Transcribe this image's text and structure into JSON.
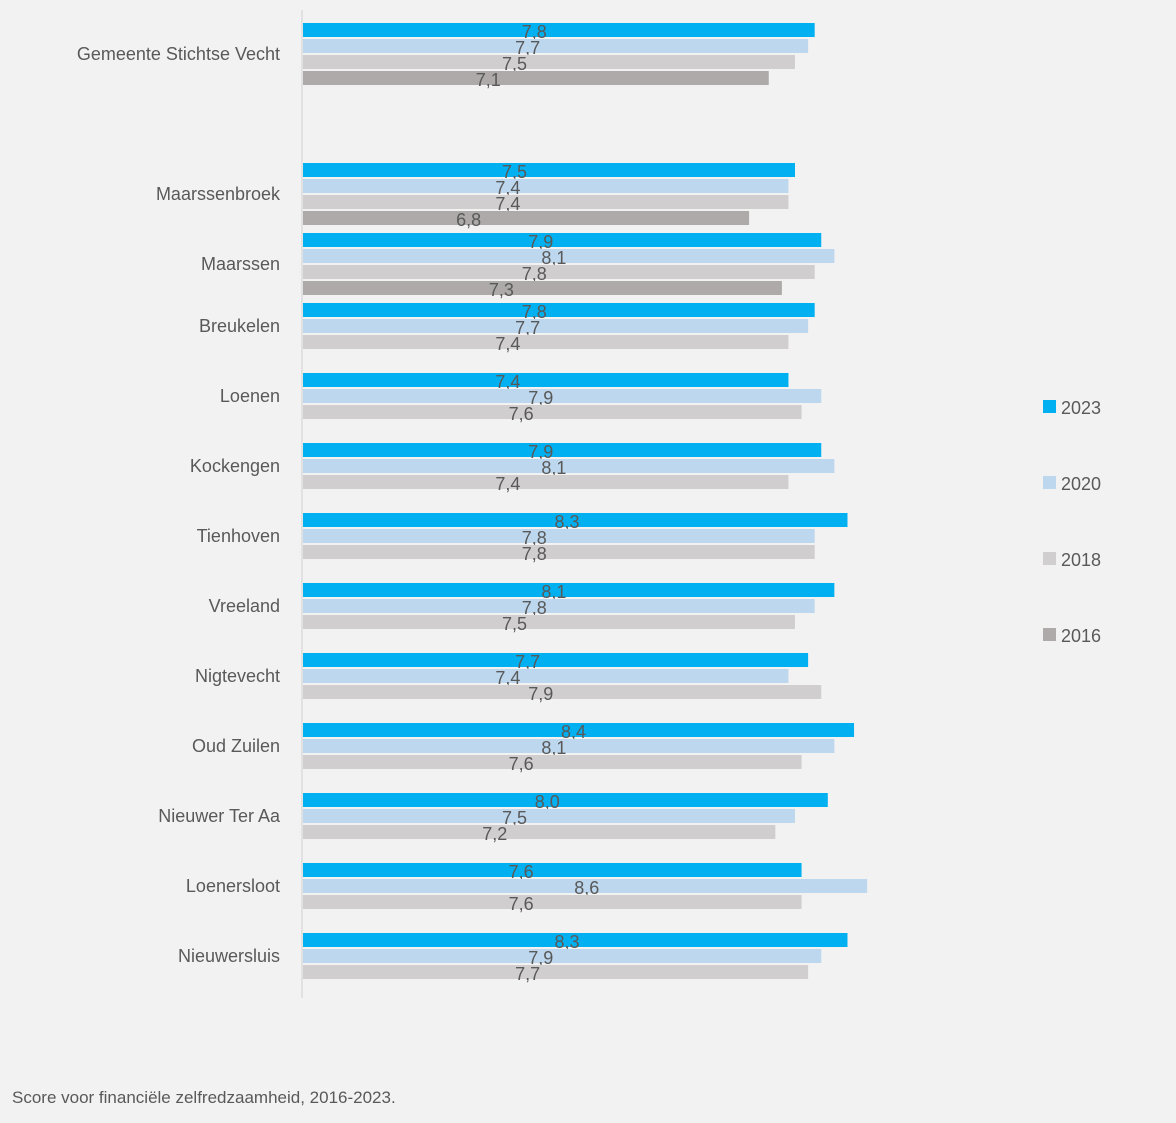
{
  "caption": "Score voor financiële zelfredzaamheid, 2016-2023.",
  "colors": {
    "background": "#f2f2f2",
    "axis": "#d0d0d0",
    "text": "#595959"
  },
  "chart_data": {
    "type": "bar",
    "orientation": "horizontal",
    "xlim": [
      0,
      8.6
    ],
    "grid": false,
    "legend_position": "right",
    "categories": [
      "Gemeente Stichtse Vecht",
      "",
      "Maarssenbroek",
      "Maarssen",
      "Breukelen",
      "Loenen",
      "Kockengen",
      "Tienhoven",
      "Vreeland",
      "Nigtevecht",
      "Oud Zuilen",
      "Nieuwer Ter Aa",
      "Loenersloot",
      "Nieuwersluis"
    ],
    "series": [
      {
        "name": "2023",
        "color": "#00b0f0",
        "values": [
          7.8,
          null,
          7.5,
          7.9,
          7.8,
          7.4,
          7.9,
          8.3,
          8.1,
          7.7,
          8.4,
          8.0,
          7.6,
          8.3
        ]
      },
      {
        "name": "2020",
        "color": "#bdd7ee",
        "values": [
          7.7,
          null,
          7.4,
          8.1,
          7.7,
          7.9,
          8.1,
          7.8,
          7.8,
          7.4,
          8.1,
          7.5,
          8.6,
          7.9
        ]
      },
      {
        "name": "2018",
        "color": "#d0cece",
        "values": [
          7.5,
          null,
          7.4,
          7.8,
          7.4,
          7.6,
          7.4,
          7.8,
          7.5,
          7.9,
          7.6,
          7.2,
          7.6,
          7.7
        ]
      },
      {
        "name": "2016",
        "color": "#aeaaaa",
        "values": [
          7.1,
          null,
          6.8,
          7.3,
          null,
          null,
          null,
          null,
          null,
          null,
          null,
          null,
          null,
          null
        ]
      }
    ],
    "data_labels": [
      [
        "7,8",
        "7,7",
        "7,5",
        "7,1"
      ],
      [],
      [
        "7,5",
        "7,4",
        "7,4",
        "6,8"
      ],
      [
        "7,9",
        "8,1",
        "7,8",
        "7,3"
      ],
      [
        "7,8",
        "7,7",
        "7,4"
      ],
      [
        "7,4",
        "7,9",
        "7,6"
      ],
      [
        "7,9",
        "8,1",
        "7,4"
      ],
      [
        "8,3",
        "7,8",
        "7,8"
      ],
      [
        "8,1",
        "7,8",
        "7,5"
      ],
      [
        "7,7",
        "7,4",
        "7,9"
      ],
      [
        "8,4",
        "8,1",
        "7,6"
      ],
      [
        "8,0",
        "7,5",
        "7,2"
      ],
      [
        "7,6",
        "8,6",
        "7,6"
      ],
      [
        "8,3",
        "7,9",
        "7,7"
      ]
    ]
  }
}
